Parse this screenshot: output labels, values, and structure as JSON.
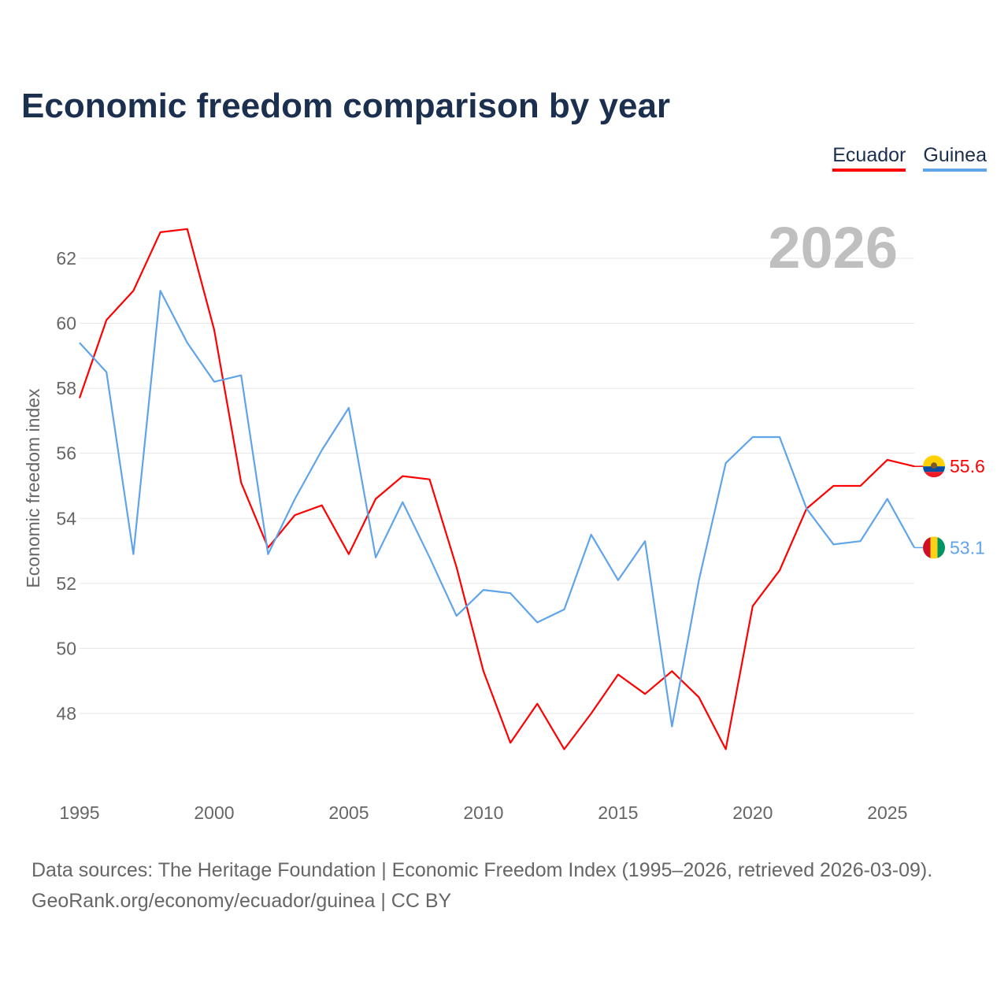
{
  "title": "Economic freedom comparison by year",
  "legend": [
    {
      "label": "Ecuador",
      "color": "#ff0000"
    },
    {
      "label": "Guinea",
      "color": "#5fa4ea"
    }
  ],
  "source_lines": [
    "Data sources: The Heritage Foundation | Economic Freedom Index (1995–2026, retrieved 2026-03-09).",
    "GeoRank.org/economy/ecuador/guinea | CC BY"
  ],
  "chart_data": {
    "type": "line",
    "title": "Economic freedom comparison by year",
    "xlabel": "",
    "ylabel": "Economic freedom index",
    "year_watermark": "2026",
    "x": [
      1995,
      1996,
      1997,
      1998,
      1999,
      2000,
      2001,
      2002,
      2003,
      2004,
      2005,
      2006,
      2007,
      2008,
      2009,
      2010,
      2011,
      2012,
      2013,
      2014,
      2015,
      2016,
      2017,
      2018,
      2019,
      2020,
      2021,
      2022,
      2023,
      2024,
      2025,
      2026
    ],
    "xticks": [
      1995,
      2000,
      2005,
      2010,
      2015,
      2020,
      2025
    ],
    "yticks": [
      48,
      50,
      52,
      54,
      56,
      58,
      60,
      62
    ],
    "xlim": [
      1995,
      2026
    ],
    "ylim": [
      46.5,
      63.5
    ],
    "grid": true,
    "series": [
      {
        "name": "Ecuador",
        "color": "#ff0000",
        "end_label": "55.6",
        "flag": "ecuador-flag",
        "values": [
          57.7,
          60.1,
          61.0,
          62.8,
          62.9,
          59.8,
          55.1,
          53.1,
          54.1,
          54.4,
          52.9,
          54.6,
          55.3,
          55.2,
          52.5,
          49.3,
          47.1,
          48.3,
          46.9,
          48.0,
          49.2,
          48.6,
          49.3,
          48.5,
          46.9,
          51.3,
          52.4,
          54.3,
          55.0,
          55.0,
          55.8,
          55.6
        ]
      },
      {
        "name": "Guinea",
        "color": "#5fa4ea",
        "end_label": "53.1",
        "flag": "guinea-flag",
        "values": [
          59.4,
          58.5,
          52.9,
          61.0,
          59.4,
          58.2,
          58.4,
          52.9,
          54.6,
          56.1,
          57.4,
          52.8,
          54.5,
          52.8,
          51.0,
          51.8,
          51.7,
          50.8,
          51.2,
          53.5,
          52.1,
          53.3,
          47.6,
          52.1,
          55.7,
          56.5,
          56.5,
          54.3,
          53.2,
          53.3,
          54.6,
          53.1
        ]
      }
    ]
  }
}
